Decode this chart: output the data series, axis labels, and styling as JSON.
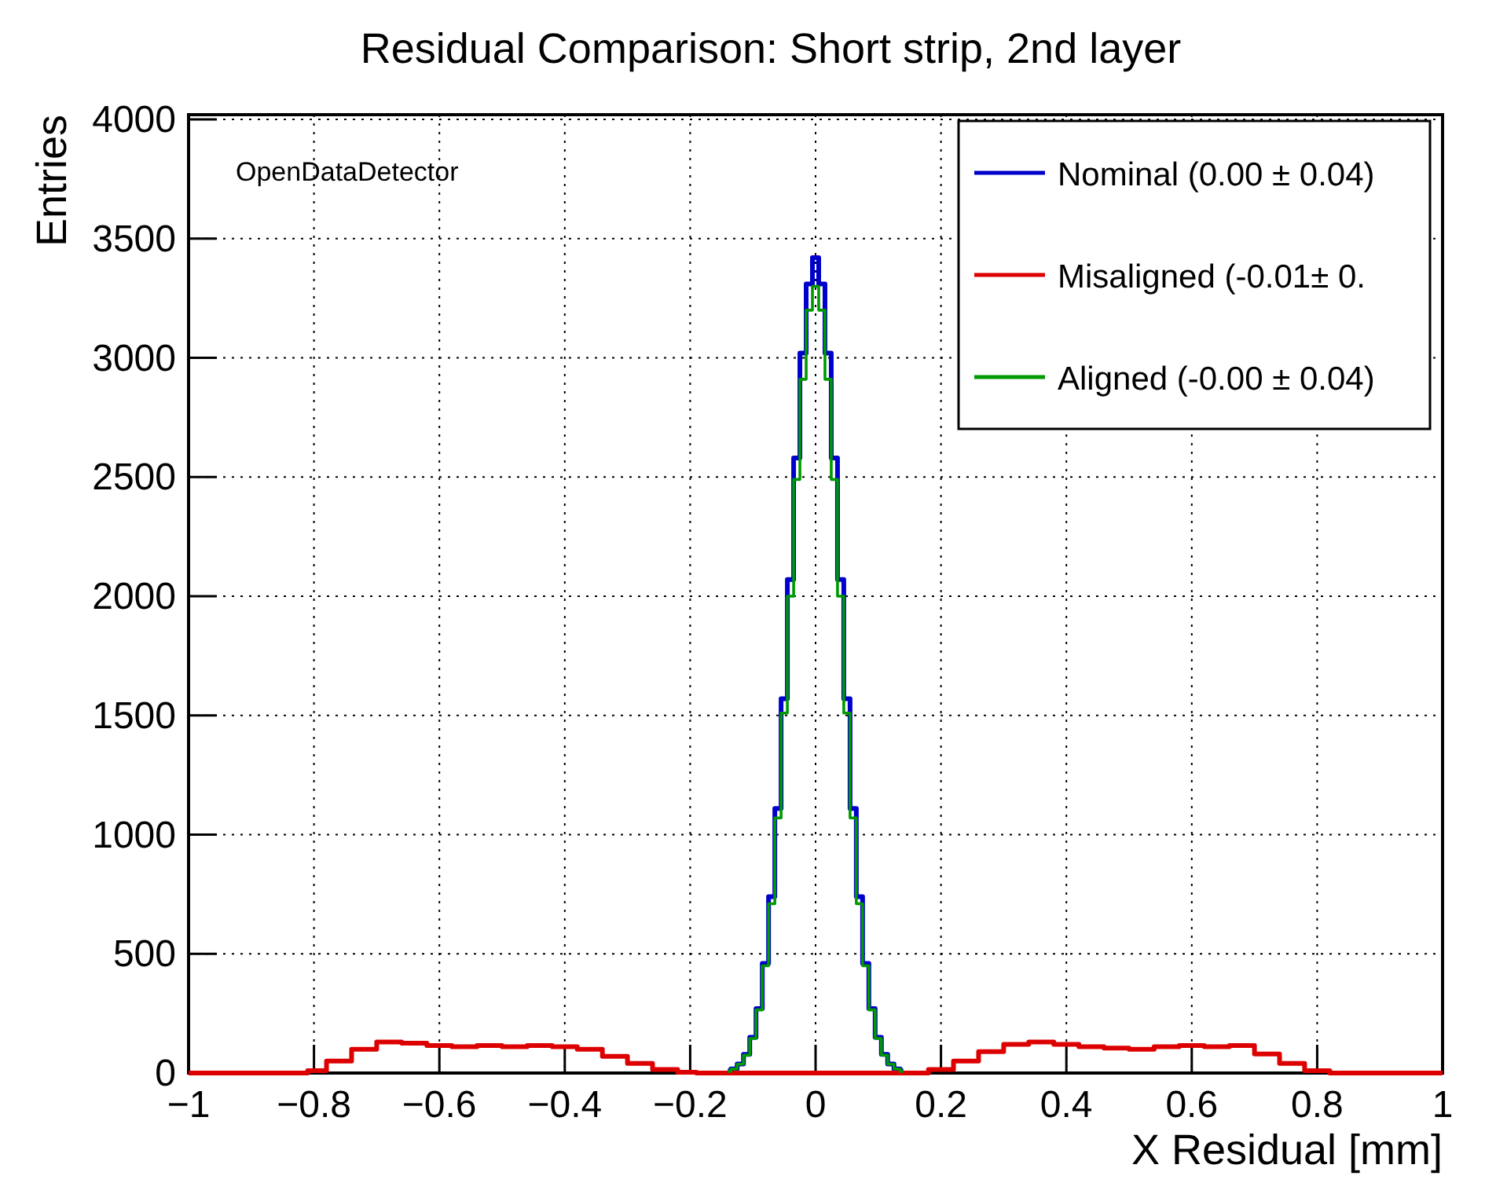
{
  "chart_data": {
    "type": "step",
    "title": "Residual Comparison: Short strip, 2nd layer",
    "xlabel": "X Residual [mm]",
    "ylabel": "Entries",
    "annotations": [
      "OpenDataDetector"
    ],
    "xlim": [
      -1,
      1
    ],
    "ylim": [
      0,
      4020
    ],
    "xticks": [
      {
        "value": -1,
        "label": "−1"
      },
      {
        "value": -0.8,
        "label": "−0.8"
      },
      {
        "value": -0.6,
        "label": "−0.6"
      },
      {
        "value": -0.4,
        "label": "−0.4"
      },
      {
        "value": -0.2,
        "label": "−0.2"
      },
      0,
      0.2,
      0.4,
      0.6,
      0.8,
      1
    ],
    "yticks": [
      0,
      500,
      1000,
      1500,
      2000,
      2500,
      3000,
      3500,
      4000
    ],
    "grid": true,
    "legend": "top right",
    "line_style": "solid",
    "series": [
      {
        "name": "Nominal (0.00 ± 0.04)",
        "color": "#0000cc",
        "x": [
          -0.14,
          -0.13,
          -0.12,
          -0.11,
          -0.1,
          -0.09,
          -0.08,
          -0.07,
          -0.06,
          -0.05,
          -0.04,
          -0.03,
          -0.02,
          -0.01,
          0,
          0.01,
          0.02,
          0.03,
          0.04,
          0.05,
          0.06,
          0.07,
          0.08,
          0.09,
          0.1,
          0.11,
          0.12,
          0.13,
          0.14
        ],
        "values": [
          8,
          17,
          38,
          78,
          150,
          270,
          460,
          740,
          1110,
          1570,
          2070,
          2580,
          3020,
          3310,
          3420,
          3310,
          3020,
          2580,
          2070,
          1570,
          1110,
          740,
          460,
          270,
          150,
          78,
          38,
          17,
          8
        ]
      },
      {
        "name": "Misaligned (-0.01± 0.",
        "color": "#dd0000",
        "x": [
          -1,
          -0.82,
          -0.8,
          -0.76,
          -0.72,
          -0.68,
          -0.64,
          -0.6,
          -0.56,
          -0.52,
          -0.48,
          -0.44,
          -0.4,
          -0.36,
          -0.32,
          -0.28,
          -0.24,
          -0.2,
          -0.18,
          0.16,
          0.2,
          0.24,
          0.28,
          0.32,
          0.36,
          0.4,
          0.44,
          0.48,
          0.52,
          0.56,
          0.6,
          0.64,
          0.68,
          0.72,
          0.76,
          0.8,
          0.84,
          1
        ],
        "values": [
          0,
          0,
          10,
          50,
          100,
          130,
          125,
          115,
          110,
          115,
          110,
          115,
          110,
          100,
          70,
          40,
          15,
          3,
          0,
          0,
          15,
          50,
          90,
          120,
          130,
          120,
          110,
          105,
          100,
          110,
          115,
          110,
          115,
          80,
          40,
          10,
          0,
          0
        ]
      },
      {
        "name": "Aligned (-0.00 ± 0.04)",
        "color": "#009900",
        "x": [
          -0.14,
          -0.13,
          -0.12,
          -0.11,
          -0.1,
          -0.09,
          -0.08,
          -0.07,
          -0.06,
          -0.05,
          -0.04,
          -0.03,
          -0.02,
          -0.01,
          0,
          0.01,
          0.02,
          0.03,
          0.04,
          0.05,
          0.06,
          0.07,
          0.08,
          0.09,
          0.1,
          0.11,
          0.12,
          0.13,
          0.14
        ],
        "values": [
          7,
          17,
          37,
          75,
          145,
          265,
          450,
          710,
          1070,
          1510,
          2000,
          2490,
          2910,
          3200,
          3300,
          3200,
          2910,
          2490,
          2000,
          1510,
          1070,
          710,
          450,
          265,
          145,
          75,
          37,
          17,
          7
        ]
      }
    ]
  }
}
